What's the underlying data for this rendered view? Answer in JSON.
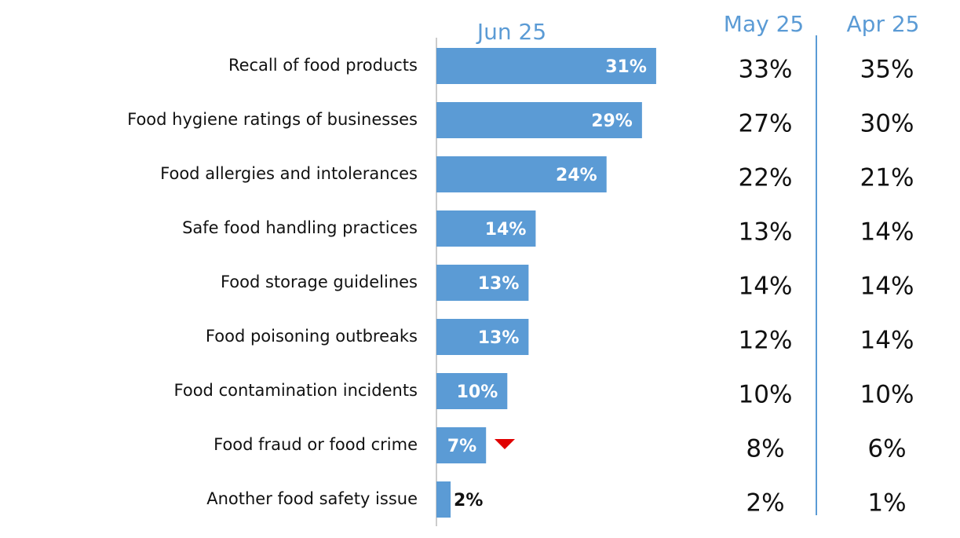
{
  "chart_data": {
    "type": "bar",
    "categories": [
      "Recall of food products",
      "Food hygiene ratings of businesses",
      "Food allergies and intolerances",
      "Safe food handling practices",
      "Food storage guidelines",
      "Food poisoning outbreaks",
      "Food contamination incidents",
      "Food fraud or food crime",
      "Another food safety issue"
    ],
    "series": [
      {
        "name": "Jun 25",
        "color": "#5b9bd5",
        "values": [
          31,
          29,
          24,
          14,
          13,
          13,
          10,
          7,
          2
        ],
        "value_labels": [
          "31%",
          "29%",
          "24%",
          "14%",
          "13%",
          "13%",
          "10%",
          "7%",
          "2%"
        ]
      },
      {
        "name": "May 25",
        "values": [
          33,
          27,
          22,
          13,
          14,
          12,
          10,
          8,
          2
        ],
        "value_labels": [
          "33%",
          "27%",
          "22%",
          "13%",
          "14%",
          "12%",
          "10%",
          "8%",
          "2%"
        ]
      },
      {
        "name": "Apr 25",
        "values": [
          35,
          30,
          21,
          14,
          14,
          14,
          10,
          6,
          1
        ],
        "value_labels": [
          "35%",
          "30%",
          "21%",
          "14%",
          "14%",
          "14%",
          "10%",
          "6%",
          "1%"
        ]
      }
    ]
  }
}
